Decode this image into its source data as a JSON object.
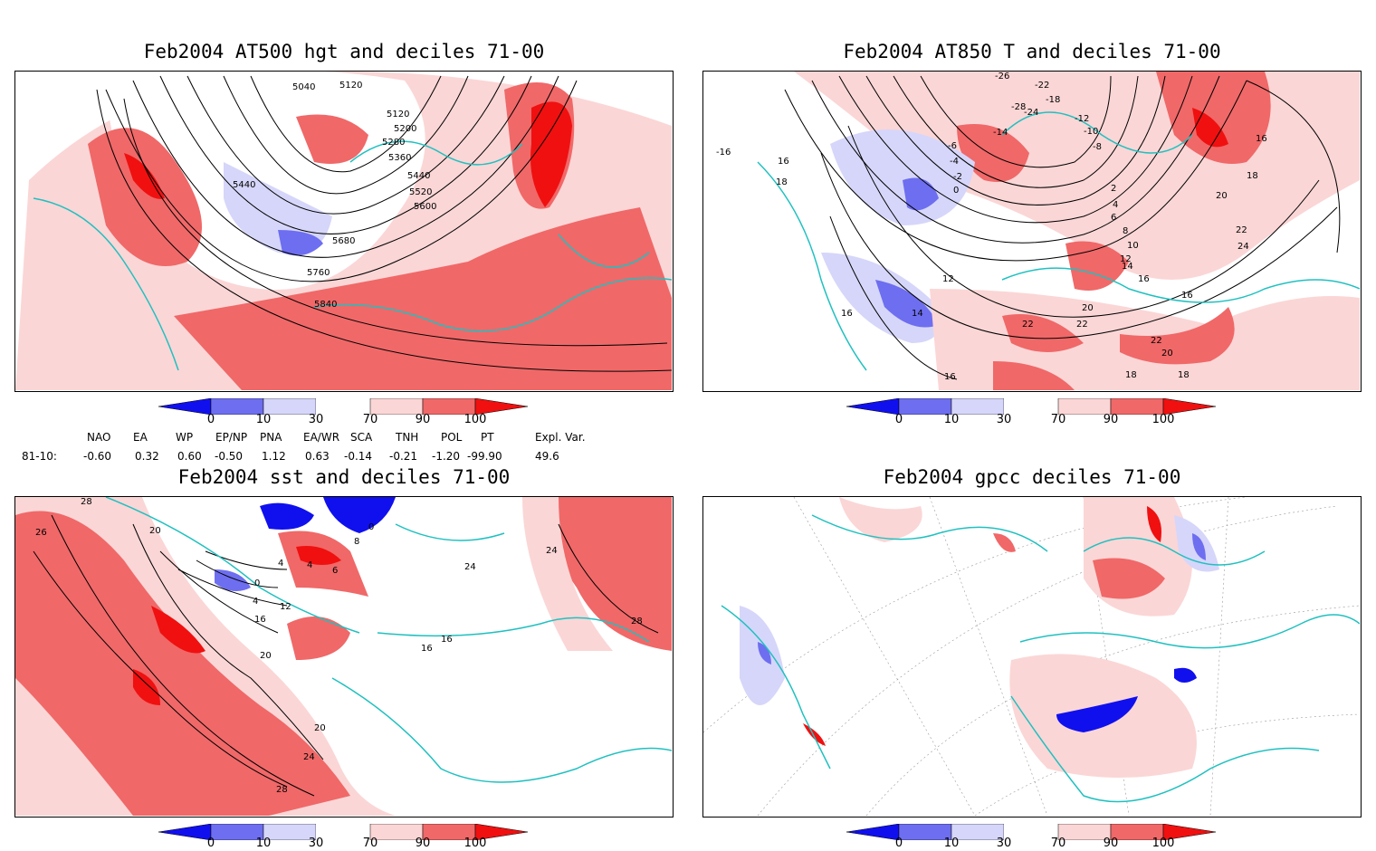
{
  "palette": {
    "deep_blue": "#1010ee",
    "mid_blue": "#6e6ef0",
    "light_blue": "#d6d6fa",
    "light_red": "#fbd6d6",
    "mid_red": "#f06868",
    "deep_red": "#f01010",
    "coast": "#20c0c0",
    "contour": "#000000"
  },
  "colorbar": {
    "ticks": [
      "0",
      "10",
      "30",
      "70",
      "90",
      "100"
    ]
  },
  "panels": [
    {
      "title": "Feb2004 AT500 hgt and deciles 71-00",
      "contour_labels": [
        "5040",
        "5120",
        "5120",
        "5200",
        "5280",
        "5360",
        "5440",
        "5440",
        "5520",
        "5600",
        "5680",
        "5760",
        "5840"
      ]
    },
    {
      "title": "Feb2004 AT850 T and deciles 71-00",
      "contour_labels": [
        "-26",
        "-22",
        "-18",
        "-24",
        "-28",
        "-12",
        "-14",
        "-10",
        "-8",
        "-6",
        "-4",
        "-2",
        "0",
        "2",
        "4",
        "6",
        "8",
        "10",
        "12",
        "14",
        "16",
        "18",
        "20",
        "22",
        "24",
        "16",
        "16",
        "16",
        "18",
        "-16",
        "12",
        "14",
        "16",
        "22",
        "22",
        "20",
        "18",
        "16",
        "18",
        "20",
        "22"
      ]
    },
    {
      "title": "Feb2004 sst and deciles 71-00",
      "contour_labels": [
        "28",
        "26",
        "20",
        "0",
        "4",
        "4",
        "6",
        "8",
        "4",
        "12",
        "16",
        "20",
        "20",
        "24",
        "28",
        "16",
        "16",
        "24",
        "24",
        "28",
        "0"
      ]
    },
    {
      "title": "Feb2004 gpcc deciles 71-00",
      "contour_labels": []
    }
  ],
  "teleconnection": {
    "headers": [
      "NAO",
      "EA",
      "WP",
      "EP/NP",
      "PNA",
      "EA/WR",
      "SCA",
      "TNH",
      "POL",
      "PT",
      "Expl. Var."
    ],
    "row_label": "81-10:",
    "values": [
      "-0.60",
      "0.32",
      "0.60",
      "-0.50",
      "1.12",
      "0.63",
      "-0.14",
      "-0.21",
      "-1.20",
      "-99.90",
      "49.6"
    ]
  }
}
